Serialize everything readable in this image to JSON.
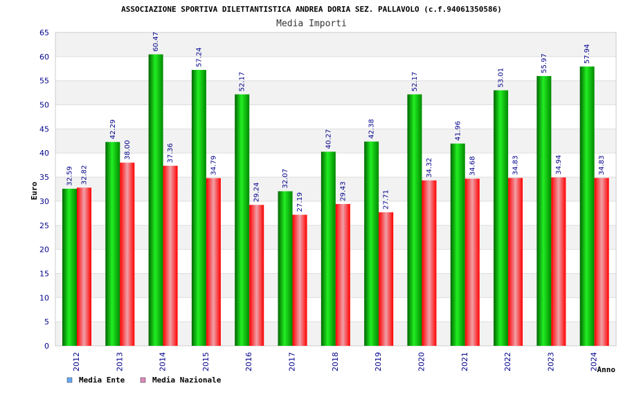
{
  "chart_data": {
    "type": "bar",
    "title": "ASSOCIAZIONE SPORTIVA DILETTANTISTICA ANDREA DORIA SEZ. PALLAVOLO (c.f.94061350586)",
    "subtitle": "Media Importi",
    "xlabel": "Anno",
    "ylabel": "Euro",
    "ylim": [
      0,
      65
    ],
    "ytick_step": 5,
    "grid": true,
    "legend_position": "bottom-left",
    "categories": [
      "2012",
      "2013",
      "2014",
      "2015",
      "2016",
      "2017",
      "2018",
      "2019",
      "2020",
      "2021",
      "2022",
      "2023",
      "2024"
    ],
    "series": [
      {
        "name": "Media Ente",
        "color": "#00cc00",
        "legend_color": "#66aaff",
        "values": [
          32.59,
          42.29,
          60.47,
          57.24,
          52.17,
          32.07,
          40.27,
          42.38,
          52.17,
          41.96,
          53.01,
          55.97,
          57.94
        ],
        "labels": [
          "32.59",
          "42.29",
          "60.47",
          "57.24",
          "52.17",
          "32.07",
          "40.27",
          "42.38",
          "52.17",
          "41.96",
          "53.01",
          "55.97",
          "57.94"
        ]
      },
      {
        "name": "Media Nazionale",
        "color": "#ee1122",
        "legend_color": "#dd88bb",
        "values": [
          32.82,
          38.0,
          37.36,
          34.79,
          29.24,
          27.19,
          29.43,
          27.71,
          34.32,
          34.68,
          34.83,
          34.94,
          34.83
        ],
        "labels": [
          "32.82",
          "38.00",
          "37.36",
          "34.79",
          "29.24",
          "27.19",
          "29.43",
          "27.71",
          "34.32",
          "34.68",
          "34.83",
          "34.94",
          "34.83"
        ]
      }
    ]
  }
}
